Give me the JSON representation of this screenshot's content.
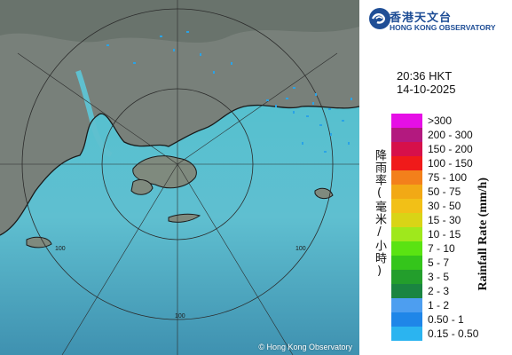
{
  "map": {
    "copyright": "© Hong Kong Observatory",
    "ring_labels": [
      "100",
      "100",
      "100"
    ]
  },
  "logo": {
    "name_cn": "香港天文台",
    "name_en": "HONG KONG OBSERVATORY"
  },
  "timestamp": {
    "time": "20:36 HKT",
    "date": "14-10-2025"
  },
  "legend": {
    "title_cn": "降雨率(毫米/小時)",
    "title_en": "Rainfall Rate (mm/h)",
    "items": [
      {
        "label": ">300",
        "color": "#e60fe6"
      },
      {
        "label": "200 - 300",
        "color": "#b3197f"
      },
      {
        "label": "150 - 200",
        "color": "#d6104a"
      },
      {
        "label": "100 - 150",
        "color": "#f01a1a"
      },
      {
        "label": "75 - 100",
        "color": "#f3801b"
      },
      {
        "label": "50 - 75",
        "color": "#f2a915"
      },
      {
        "label": "30 - 50",
        "color": "#f2c017"
      },
      {
        "label": "15 - 30",
        "color": "#d9d416"
      },
      {
        "label": "10 - 15",
        "color": "#9fe81c"
      },
      {
        "label": "7 - 10",
        "color": "#5ae312"
      },
      {
        "label": "5 - 7",
        "color": "#34c51b"
      },
      {
        "label": "3 - 5",
        "color": "#239e2c"
      },
      {
        "label": "2 - 3",
        "color": "#1a8541"
      },
      {
        "label": "1 - 2",
        "color": "#4d9ef0"
      },
      {
        "label": "0.50 - 1",
        "color": "#1f86e8"
      },
      {
        "label": "0.15 - 0.50",
        "color": "#2bb4f0"
      }
    ]
  }
}
